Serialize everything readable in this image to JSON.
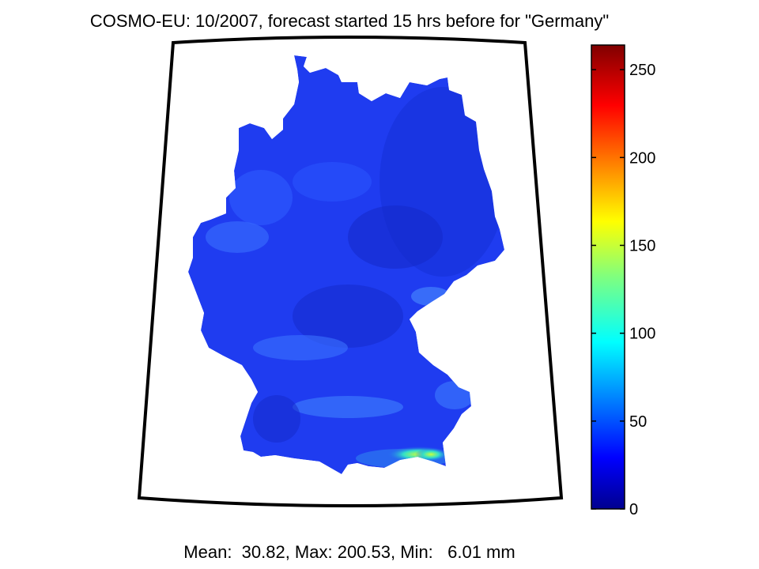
{
  "title": "COSMO-EU: 10/2007, forecast started 15 hrs before for \"Germany\"",
  "stats": "Mean:  30.82, Max: 200.53, Min:   6.01 mm",
  "colorbar": {
    "min": 0,
    "max": 264,
    "ticks": [
      {
        "value": 0,
        "label": "0"
      },
      {
        "value": 50,
        "label": "50"
      },
      {
        "value": 100,
        "label": "100"
      },
      {
        "value": 150,
        "label": "150"
      },
      {
        "value": 200,
        "label": "200"
      },
      {
        "value": 250,
        "label": "250"
      }
    ],
    "colormap": "jet"
  },
  "colors": {
    "land_base": "#1f3cf0",
    "frame": "#000000",
    "background": "#ffffff"
  }
}
